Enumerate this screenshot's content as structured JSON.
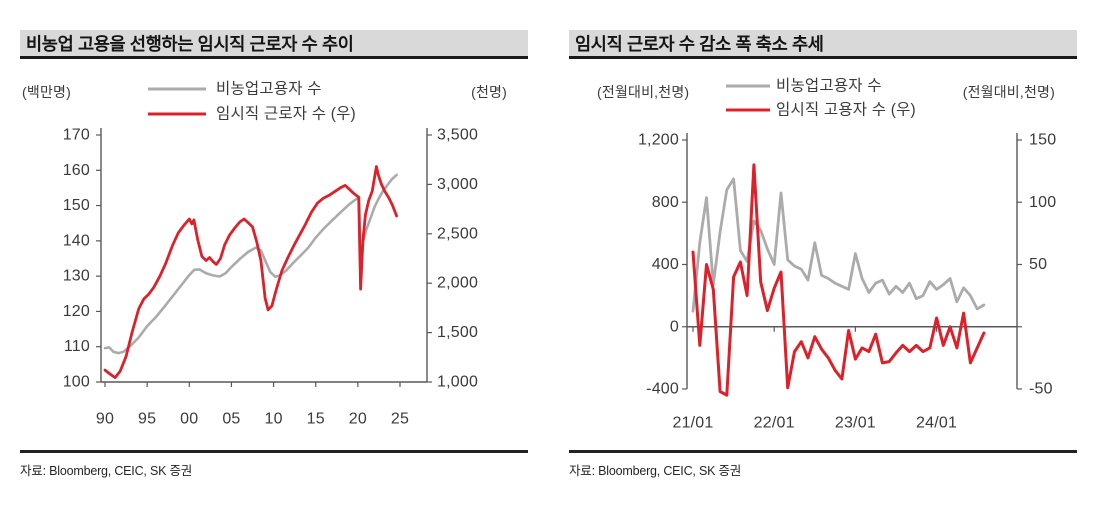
{
  "colors": {
    "red": "#dd2029",
    "gray": "#ababab",
    "axis": "#595959",
    "label": "#3b3b3b",
    "title_bg": "#d9d9d9"
  },
  "chart_data": [
    {
      "type": "line",
      "title": "비농업 고용을 선행하는 임시직 근로자 수 추이",
      "source": "자료:  Bloomberg, CEIC, SK 증권",
      "legend": [
        {
          "label": "비농업고용자 수",
          "color_key": "gray"
        },
        {
          "label": "임시직 근로자 수 (우)",
          "color_key": "red"
        }
      ],
      "left_axis": {
        "unit": "(백만명)",
        "range": [
          100,
          170
        ],
        "ticks": [
          {
            "v": 170,
            "label": "170"
          },
          {
            "v": 160,
            "label": "160"
          },
          {
            "v": 150,
            "label": "150"
          },
          {
            "v": 140,
            "label": "140"
          },
          {
            "v": 130,
            "label": "130"
          },
          {
            "v": 120,
            "label": "120"
          },
          {
            "v": 110,
            "label": "110"
          },
          {
            "v": 100,
            "label": "100"
          }
        ]
      },
      "right_axis": {
        "unit": "(천명)",
        "range": [
          1000,
          3500
        ],
        "ticks": [
          {
            "v": 3500,
            "label": "3,500"
          },
          {
            "v": 3000,
            "label": "3,000"
          },
          {
            "v": 2500,
            "label": "2,500"
          },
          {
            "v": 2000,
            "label": "2,000"
          },
          {
            "v": 1500,
            "label": "1,500"
          },
          {
            "v": 1000,
            "label": "1,000"
          }
        ]
      },
      "x_axis": {
        "range": [
          1990,
          2025
        ],
        "at_zero": false,
        "ticks": [
          {
            "v": 1990,
            "label": "90"
          },
          {
            "v": 1995,
            "label": "95"
          },
          {
            "v": 2000,
            "label": "00"
          },
          {
            "v": 2005,
            "label": "05"
          },
          {
            "v": 2010,
            "label": "10"
          },
          {
            "v": 2015,
            "label": "15"
          },
          {
            "v": 2020,
            "label": "20"
          },
          {
            "v": 2025,
            "label": "25"
          }
        ]
      },
      "series": [
        {
          "name": "비농업고용자 수",
          "axis": "left",
          "color_key": "gray",
          "width": 2.6,
          "points": [
            [
              1990,
              109.6
            ],
            [
              1990.5,
              109.8
            ],
            [
              1991,
              108.6
            ],
            [
              1991.6,
              108.2
            ],
            [
              1992.2,
              108.6
            ],
            [
              1993,
              110.2
            ],
            [
              1994,
              112.6
            ],
            [
              1995,
              115.8
            ],
            [
              1996,
              118.3
            ],
            [
              1997,
              121.2
            ],
            [
              1998,
              124.2
            ],
            [
              1999,
              127.3
            ],
            [
              2000,
              130.3
            ],
            [
              2000.6,
              131.8
            ],
            [
              2001.2,
              131.9
            ],
            [
              2002,
              130.8
            ],
            [
              2002.8,
              130.2
            ],
            [
              2003.6,
              129.9
            ],
            [
              2004.3,
              130.8
            ],
            [
              2005,
              132.6
            ],
            [
              2006,
              134.9
            ],
            [
              2007,
              136.9
            ],
            [
              2007.9,
              138.1
            ],
            [
              2008.5,
              137.3
            ],
            [
              2009,
              134.5
            ],
            [
              2009.6,
              131.2
            ],
            [
              2010.2,
              129.8
            ],
            [
              2010.8,
              130.3
            ],
            [
              2011.5,
              131.6
            ],
            [
              2012.3,
              133.7
            ],
            [
              2013.2,
              135.8
            ],
            [
              2014.1,
              138.0
            ],
            [
              2015,
              140.9
            ],
            [
              2016,
              143.6
            ],
            [
              2017,
              145.9
            ],
            [
              2018,
              148.2
            ],
            [
              2019,
              150.4
            ],
            [
              2019.9,
              152.0
            ],
            [
              2020.15,
              152.3
            ],
            [
              2020.33,
              130.5
            ],
            [
              2020.6,
              139.5
            ],
            [
              2021,
              143.2
            ],
            [
              2021.5,
              146.4
            ],
            [
              2022,
              149.7
            ],
            [
              2022.5,
              152.1
            ],
            [
              2023,
              154.2
            ],
            [
              2023.5,
              155.8
            ],
            [
              2024,
              157.4
            ],
            [
              2024.6,
              158.7
            ]
          ]
        },
        {
          "name": "임시직 근로자 수 (우)",
          "axis": "right",
          "color_key": "red",
          "width": 2.8,
          "points": [
            [
              1990,
              1120
            ],
            [
              1990.6,
              1080
            ],
            [
              1991.2,
              1045
            ],
            [
              1991.8,
              1110
            ],
            [
              1992.5,
              1260
            ],
            [
              1993.2,
              1500
            ],
            [
              1994,
              1740
            ],
            [
              1994.6,
              1840
            ],
            [
              1995.2,
              1890
            ],
            [
              1995.8,
              1960
            ],
            [
              1996.5,
              2070
            ],
            [
              1997.2,
              2200
            ],
            [
              1998,
              2380
            ],
            [
              1998.7,
              2510
            ],
            [
              1999.4,
              2590
            ],
            [
              2000,
              2650
            ],
            [
              2000.3,
              2600
            ],
            [
              2000.55,
              2640
            ],
            [
              2001,
              2440
            ],
            [
              2001.5,
              2270
            ],
            [
              2002,
              2230
            ],
            [
              2002.4,
              2260
            ],
            [
              2002.8,
              2220
            ],
            [
              2003.2,
              2190
            ],
            [
              2003.7,
              2250
            ],
            [
              2004.2,
              2390
            ],
            [
              2004.8,
              2490
            ],
            [
              2005.4,
              2560
            ],
            [
              2006,
              2620
            ],
            [
              2006.5,
              2650
            ],
            [
              2007,
              2610
            ],
            [
              2007.5,
              2570
            ],
            [
              2008,
              2420
            ],
            [
              2008.5,
              2230
            ],
            [
              2009,
              1850
            ],
            [
              2009.35,
              1730
            ],
            [
              2009.8,
              1770
            ],
            [
              2010.3,
              1930
            ],
            [
              2011,
              2130
            ],
            [
              2011.7,
              2260
            ],
            [
              2012.4,
              2380
            ],
            [
              2013.1,
              2490
            ],
            [
              2013.8,
              2600
            ],
            [
              2014.5,
              2720
            ],
            [
              2015.2,
              2810
            ],
            [
              2015.9,
              2860
            ],
            [
              2016.6,
              2890
            ],
            [
              2017.3,
              2930
            ],
            [
              2018,
              2970
            ],
            [
              2018.5,
              2990
            ],
            [
              2019,
              2950
            ],
            [
              2019.5,
              2910
            ],
            [
              2020.1,
              2870
            ],
            [
              2020.32,
              1940
            ],
            [
              2020.6,
              2430
            ],
            [
              2020.9,
              2690
            ],
            [
              2021.3,
              2840
            ],
            [
              2021.7,
              2930
            ],
            [
              2022,
              3080
            ],
            [
              2022.2,
              3180
            ],
            [
              2022.45,
              3090
            ],
            [
              2022.8,
              3000
            ],
            [
              2023.2,
              2930
            ],
            [
              2023.7,
              2860
            ],
            [
              2024.1,
              2790
            ],
            [
              2024.6,
              2680
            ]
          ]
        }
      ]
    },
    {
      "type": "line",
      "title": "임시직 근로자 수 감소 폭 축소 추세",
      "source": "자료: Bloomberg, CEIC, SK 증권",
      "legend": [
        {
          "label": "비농업고용자 수",
          "color_key": "gray"
        },
        {
          "label": "임시직 고용자 수 (우)",
          "color_key": "red"
        }
      ],
      "left_axis": {
        "unit": "(전월대비,천명)",
        "range": [
          -400,
          1200
        ],
        "ticks": [
          {
            "v": 1200,
            "label": "1,200"
          },
          {
            "v": 800,
            "label": "800"
          },
          {
            "v": 400,
            "label": "400"
          },
          {
            "v": 0,
            "label": "0"
          },
          {
            "v": -400,
            "label": "-400"
          }
        ]
      },
      "right_axis": {
        "unit": "(전월대비,천명)",
        "range": [
          -50,
          150
        ],
        "ticks": [
          {
            "v": 150,
            "label": "150"
          },
          {
            "v": 100,
            "label": "100"
          },
          {
            "v": 50,
            "label": "50"
          },
          {
            "v": 0,
            "label": ""
          },
          {
            "v": -50,
            "label": "-50"
          }
        ]
      },
      "x_axis": {
        "range": [
          0,
          47
        ],
        "at_zero": true,
        "ticks": [
          {
            "v": 0,
            "label": "21/01"
          },
          {
            "v": 12,
            "label": "22/01"
          },
          {
            "v": 24,
            "label": "23/01"
          },
          {
            "v": 36,
            "label": "24/01"
          }
        ]
      },
      "series": [
        {
          "name": "비농업고용자 수",
          "axis": "left",
          "color_key": "gray",
          "width": 2.8,
          "x0": 0,
          "dx": 1,
          "values": [
            100,
            540,
            830,
            270,
            610,
            880,
            950,
            490,
            420,
            680,
            620,
            500,
            400,
            860,
            430,
            390,
            370,
            300,
            540,
            330,
            310,
            280,
            260,
            240,
            470,
            310,
            220,
            280,
            300,
            210,
            260,
            220,
            280,
            180,
            200,
            290,
            240,
            270,
            310,
            160,
            250,
            200,
            115,
            140
          ]
        },
        {
          "name": "임시직 고용자 수 (우)",
          "axis": "right",
          "color_key": "red",
          "width": 3,
          "x0": 0,
          "dx": 1,
          "values": [
            60,
            -15,
            50,
            30,
            -52,
            -55,
            40,
            52,
            25,
            130,
            36,
            13,
            31,
            44,
            -49,
            -20,
            -12,
            -25,
            -8,
            -18,
            -25,
            -35,
            -42,
            -3,
            -26,
            -17,
            -20,
            -6,
            -29,
            -28,
            -21,
            -15,
            -20,
            -15,
            -20,
            -17,
            7,
            -15,
            0,
            -17,
            11,
            -29,
            -17,
            -5
          ]
        }
      ]
    }
  ]
}
